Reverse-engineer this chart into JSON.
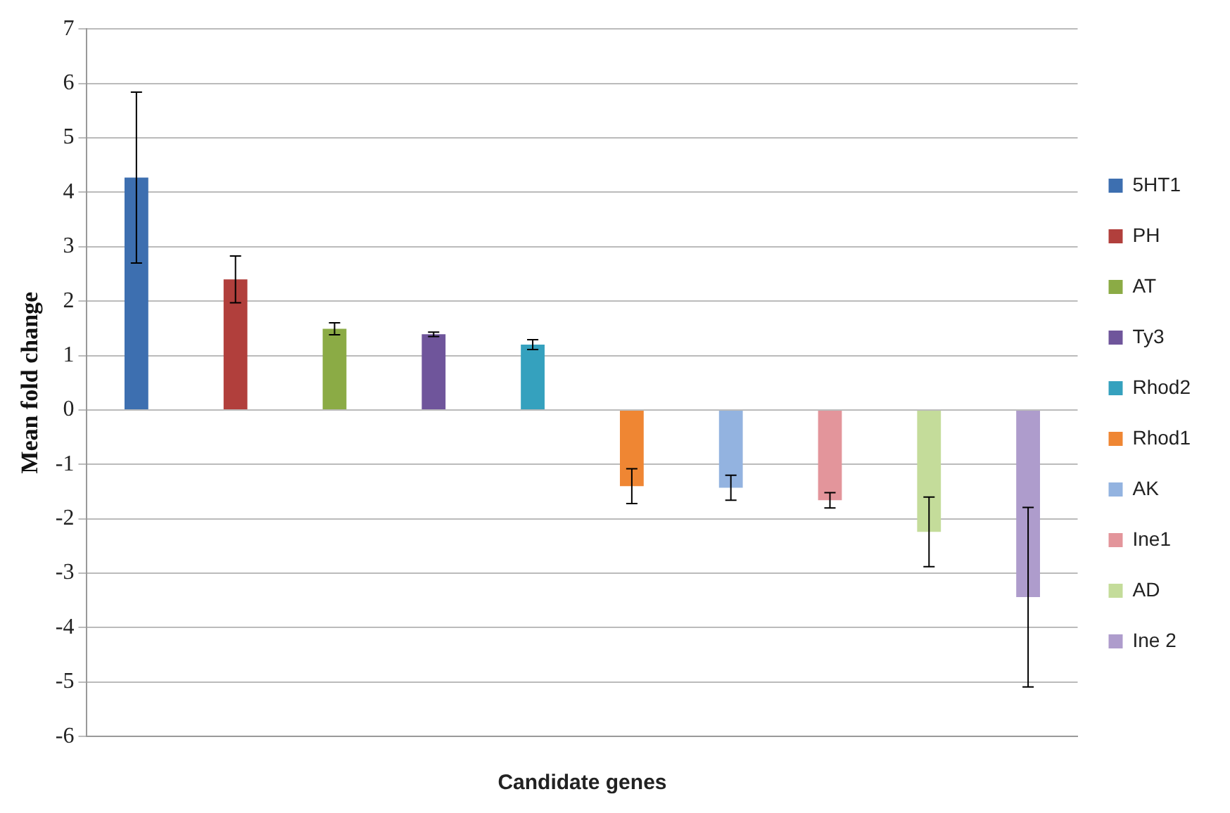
{
  "chart_data": {
    "type": "bar",
    "xlabel": "Candidate genes",
    "ylabel": "Mean fold change",
    "categories": [
      null,
      null,
      null,
      null,
      null,
      null,
      null,
      null,
      null,
      null
    ],
    "series": [
      {
        "name": "5HT1",
        "color": "#3d6fb0",
        "values": [
          4.27,
          null,
          null,
          null,
          null,
          null,
          null,
          null,
          null,
          null
        ],
        "errors": [
          1.57,
          null,
          null,
          null,
          null,
          null,
          null,
          null,
          null,
          null
        ]
      },
      {
        "name": "PH",
        "color": "#b13f3c",
        "values": [
          null,
          2.4,
          null,
          null,
          null,
          null,
          null,
          null,
          null,
          null
        ],
        "errors": [
          null,
          0.43,
          null,
          null,
          null,
          null,
          null,
          null,
          null,
          null
        ]
      },
      {
        "name": "AT",
        "color": "#8bab45",
        "values": [
          null,
          null,
          1.49,
          null,
          null,
          null,
          null,
          null,
          null,
          null
        ],
        "errors": [
          null,
          null,
          0.11,
          null,
          null,
          null,
          null,
          null,
          null,
          null
        ]
      },
      {
        "name": "Ty3",
        "color": "#6f559b",
        "values": [
          null,
          null,
          null,
          1.39,
          null,
          null,
          null,
          null,
          null,
          null
        ],
        "errors": [
          null,
          null,
          null,
          0.04,
          null,
          null,
          null,
          null,
          null,
          null
        ]
      },
      {
        "name": "Rhod2",
        "color": "#35a1be",
        "values": [
          null,
          null,
          null,
          null,
          1.2,
          null,
          null,
          null,
          null,
          null
        ],
        "errors": [
          null,
          null,
          null,
          null,
          0.09,
          null,
          null,
          null,
          null,
          null
        ]
      },
      {
        "name": "Rhod1",
        "color": "#ef8633",
        "values": [
          null,
          null,
          null,
          null,
          null,
          -1.4,
          null,
          null,
          null,
          null
        ],
        "errors": [
          null,
          null,
          null,
          null,
          null,
          0.32,
          null,
          null,
          null,
          null
        ]
      },
      {
        "name": "AK",
        "color": "#93b3e0",
        "values": [
          null,
          null,
          null,
          null,
          null,
          null,
          -1.43,
          null,
          null,
          null
        ],
        "errors": [
          null,
          null,
          null,
          null,
          null,
          null,
          0.23,
          null,
          null,
          null
        ]
      },
      {
        "name": "Ine1",
        "color": "#e3959b",
        "values": [
          null,
          null,
          null,
          null,
          null,
          null,
          null,
          -1.66,
          null,
          null
        ],
        "errors": [
          null,
          null,
          null,
          null,
          null,
          null,
          null,
          0.14,
          null,
          null
        ]
      },
      {
        "name": "AD",
        "color": "#c4dc9a",
        "values": [
          null,
          null,
          null,
          null,
          null,
          null,
          null,
          null,
          -2.24,
          null
        ],
        "errors": [
          null,
          null,
          null,
          null,
          null,
          null,
          null,
          null,
          0.64,
          null
        ]
      },
      {
        "name": "Ine 2",
        "color": "#ae9ccc",
        "values": [
          null,
          null,
          null,
          null,
          null,
          null,
          null,
          null,
          null,
          -3.44
        ],
        "errors": [
          null,
          null,
          null,
          null,
          null,
          null,
          null,
          null,
          null,
          1.65
        ]
      }
    ],
    "ylim": [
      -6,
      7
    ],
    "yticks": [
      -6,
      -5,
      -4,
      -3,
      -2,
      -1,
      0,
      1,
      2,
      3,
      4,
      5,
      6,
      7
    ],
    "grid": "y",
    "legend": "right"
  }
}
